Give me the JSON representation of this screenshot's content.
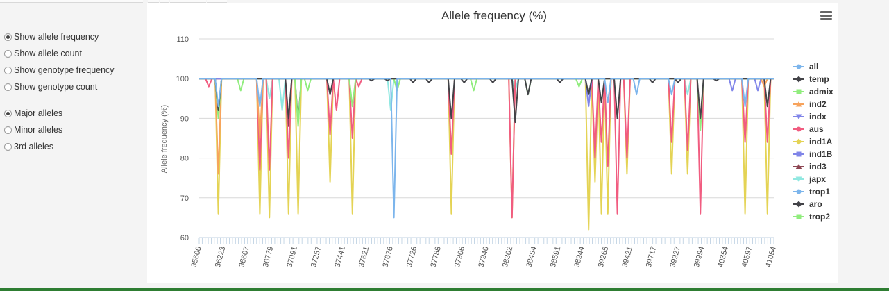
{
  "controls": {
    "display_options": [
      {
        "label": "Show allele frequency",
        "checked": true
      },
      {
        "label": "Show allele count",
        "checked": false
      },
      {
        "label": "Show genotype frequency",
        "checked": false
      },
      {
        "label": "Show genotype count",
        "checked": false
      }
    ],
    "allele_options": [
      {
        "label": "Major alleles",
        "checked": true
      },
      {
        "label": "Minor alleles",
        "checked": false
      },
      {
        "label": "3rd alleles",
        "checked": false
      }
    ]
  },
  "menu": {
    "icon": "hamburger-menu-icon"
  },
  "chart_data": {
    "type": "line",
    "title": "Allele frequency (%)",
    "xlabel": "",
    "ylabel": "Allele frequency (%)",
    "ylim": [
      60,
      110
    ],
    "yticks": [
      "110",
      "100",
      "90",
      "80",
      "70",
      "60"
    ],
    "grid": true,
    "legend_position": "right",
    "x_tick_labels": [
      "35600",
      "36223",
      "36607",
      "36779",
      "37091",
      "37257",
      "37441",
      "37621",
      "37676",
      "37726",
      "37788",
      "37906",
      "37940",
      "38302",
      "38454",
      "38591",
      "38944",
      "39265",
      "39421",
      "39717",
      "39927",
      "39994",
      "40354",
      "40597",
      "41054"
    ],
    "series": [
      {
        "name": "all",
        "color": "#7cb5ec",
        "marker": "circle"
      },
      {
        "name": "temp",
        "color": "#434348",
        "marker": "diamond"
      },
      {
        "name": "admix",
        "color": "#90ed7d",
        "marker": "square"
      },
      {
        "name": "ind2",
        "color": "#f7a35c",
        "marker": "triangle"
      },
      {
        "name": "indx",
        "color": "#8085e9",
        "marker": "triangle-down"
      },
      {
        "name": "aus",
        "color": "#f15c80",
        "marker": "circle"
      },
      {
        "name": "ind1A",
        "color": "#e4d354",
        "marker": "diamond"
      },
      {
        "name": "ind1B",
        "color": "#8085e8",
        "marker": "square"
      },
      {
        "name": "ind3",
        "color": "#8d4653",
        "marker": "triangle"
      },
      {
        "name": "japx",
        "color": "#91e8e1",
        "marker": "triangle-down"
      },
      {
        "name": "trop1",
        "color": "#7cb5ec",
        "marker": "circle"
      },
      {
        "name": "aro",
        "color": "#434348",
        "marker": "diamond"
      },
      {
        "name": "trop2",
        "color": "#90ed7d",
        "marker": "square"
      }
    ],
    "dips": [
      {
        "pos": 0.016,
        "series": "aus",
        "min": 98
      },
      {
        "pos": 0.035,
        "series": "ind1A",
        "min": 66
      },
      {
        "pos": 0.035,
        "series": "admix",
        "min": 90
      },
      {
        "pos": 0.035,
        "series": "ind2",
        "min": 76
      },
      {
        "pos": 0.035,
        "series": "temp",
        "min": 92
      },
      {
        "pos": 0.035,
        "series": "all",
        "min": 93
      },
      {
        "pos": 0.07,
        "series": "admix",
        "min": 97
      },
      {
        "pos": 0.105,
        "series": "ind1A",
        "min": 66
      },
      {
        "pos": 0.105,
        "series": "aus",
        "min": 77
      },
      {
        "pos": 0.105,
        "series": "ind2",
        "min": 85
      },
      {
        "pos": 0.105,
        "series": "all",
        "min": 93
      },
      {
        "pos": 0.123,
        "series": "ind1A",
        "min": 65
      },
      {
        "pos": 0.123,
        "series": "aus",
        "min": 77
      },
      {
        "pos": 0.123,
        "series": "japx",
        "min": 95
      },
      {
        "pos": 0.145,
        "series": "japx",
        "min": 92
      },
      {
        "pos": 0.158,
        "series": "ind1A",
        "min": 66
      },
      {
        "pos": 0.158,
        "series": "ind3",
        "min": 88
      },
      {
        "pos": 0.158,
        "series": "temp",
        "min": 90
      },
      {
        "pos": 0.158,
        "series": "aus",
        "min": 80
      },
      {
        "pos": 0.17,
        "series": "ind1A",
        "min": 66
      },
      {
        "pos": 0.17,
        "series": "aro",
        "min": 89
      },
      {
        "pos": 0.17,
        "series": "admix",
        "min": 88
      },
      {
        "pos": 0.19,
        "series": "admix",
        "min": 97
      },
      {
        "pos": 0.225,
        "series": "ind1A",
        "min": 74
      },
      {
        "pos": 0.225,
        "series": "aus",
        "min": 86
      },
      {
        "pos": 0.225,
        "series": "temp",
        "min": 96
      },
      {
        "pos": 0.24,
        "series": "aus",
        "min": 92
      },
      {
        "pos": 0.265,
        "series": "ind1A",
        "min": 66
      },
      {
        "pos": 0.265,
        "series": "aus",
        "min": 85
      },
      {
        "pos": 0.265,
        "series": "admix",
        "min": 93
      },
      {
        "pos": 0.28,
        "series": "aus",
        "min": 98
      },
      {
        "pos": 0.3,
        "series": "temp",
        "min": 99.5
      },
      {
        "pos": 0.33,
        "series": "temp",
        "min": 99.5
      },
      {
        "pos": 0.335,
        "series": "japx",
        "min": 92
      },
      {
        "pos": 0.337,
        "series": "all",
        "min": 65
      },
      {
        "pos": 0.345,
        "series": "admix",
        "min": 97
      },
      {
        "pos": 0.37,
        "series": "temp",
        "min": 99
      },
      {
        "pos": 0.4,
        "series": "temp",
        "min": 99
      },
      {
        "pos": 0.44,
        "series": "ind1A",
        "min": 66
      },
      {
        "pos": 0.44,
        "series": "temp",
        "min": 90
      },
      {
        "pos": 0.44,
        "series": "aus",
        "min": 81
      },
      {
        "pos": 0.46,
        "series": "temp",
        "min": 99
      },
      {
        "pos": 0.48,
        "series": "admix",
        "min": 97
      },
      {
        "pos": 0.51,
        "series": "temp",
        "min": 99
      },
      {
        "pos": 0.545,
        "series": "aus",
        "min": 65
      },
      {
        "pos": 0.545,
        "series": "ind1A",
        "min": 65
      },
      {
        "pos": 0.548,
        "series": "temp",
        "min": 89
      },
      {
        "pos": 0.548,
        "series": "japx",
        "min": 97
      },
      {
        "pos": 0.575,
        "series": "admix",
        "min": 96
      },
      {
        "pos": 0.575,
        "series": "temp",
        "min": 96
      },
      {
        "pos": 0.63,
        "series": "temp",
        "min": 99
      },
      {
        "pos": 0.66,
        "series": "admix",
        "min": 98
      },
      {
        "pos": 0.675,
        "series": "ind1A",
        "min": 62
      },
      {
        "pos": 0.675,
        "series": "indx",
        "min": 93
      },
      {
        "pos": 0.675,
        "series": "temp",
        "min": 96
      },
      {
        "pos": 0.69,
        "series": "ind1A",
        "min": 74
      },
      {
        "pos": 0.69,
        "series": "aus",
        "min": 80
      },
      {
        "pos": 0.7,
        "series": "ind1A",
        "min": 66
      },
      {
        "pos": 0.7,
        "series": "aus",
        "min": 84
      },
      {
        "pos": 0.7,
        "series": "temp",
        "min": 94
      },
      {
        "pos": 0.71,
        "series": "ind1A",
        "min": 66
      },
      {
        "pos": 0.71,
        "series": "aus",
        "min": 78
      },
      {
        "pos": 0.71,
        "series": "all",
        "min": 94
      },
      {
        "pos": 0.728,
        "series": "aus",
        "min": 66
      },
      {
        "pos": 0.728,
        "series": "temp",
        "min": 90
      },
      {
        "pos": 0.745,
        "series": "ind1A",
        "min": 76
      },
      {
        "pos": 0.745,
        "series": "aus",
        "min": 80
      },
      {
        "pos": 0.76,
        "series": "all",
        "min": 96
      },
      {
        "pos": 0.79,
        "series": "temp",
        "min": 99
      },
      {
        "pos": 0.82,
        "series": "ind1A",
        "min": 76
      },
      {
        "pos": 0.82,
        "series": "aus",
        "min": 84
      },
      {
        "pos": 0.82,
        "series": "all",
        "min": 96
      },
      {
        "pos": 0.835,
        "series": "temp",
        "min": 99
      },
      {
        "pos": 0.85,
        "series": "ind1A",
        "min": 76
      },
      {
        "pos": 0.85,
        "series": "aus",
        "min": 82
      },
      {
        "pos": 0.85,
        "series": "japx",
        "min": 96
      },
      {
        "pos": 0.87,
        "series": "aus",
        "min": 66
      },
      {
        "pos": 0.87,
        "series": "temp",
        "min": 90
      },
      {
        "pos": 0.87,
        "series": "admix",
        "min": 87
      },
      {
        "pos": 0.9,
        "series": "temp",
        "min": 99.5
      },
      {
        "pos": 0.93,
        "series": "indx",
        "min": 97
      },
      {
        "pos": 0.95,
        "series": "ind1A",
        "min": 66
      },
      {
        "pos": 0.95,
        "series": "aus",
        "min": 84
      },
      {
        "pos": 0.95,
        "series": "all",
        "min": 93
      },
      {
        "pos": 0.97,
        "series": "indx",
        "min": 97
      },
      {
        "pos": 0.99,
        "series": "ind1A",
        "min": 66
      },
      {
        "pos": 0.99,
        "series": "aus",
        "min": 84
      },
      {
        "pos": 0.99,
        "series": "temp",
        "min": 93
      },
      {
        "pos": 0.985,
        "series": "ind2",
        "min": 98
      }
    ]
  }
}
